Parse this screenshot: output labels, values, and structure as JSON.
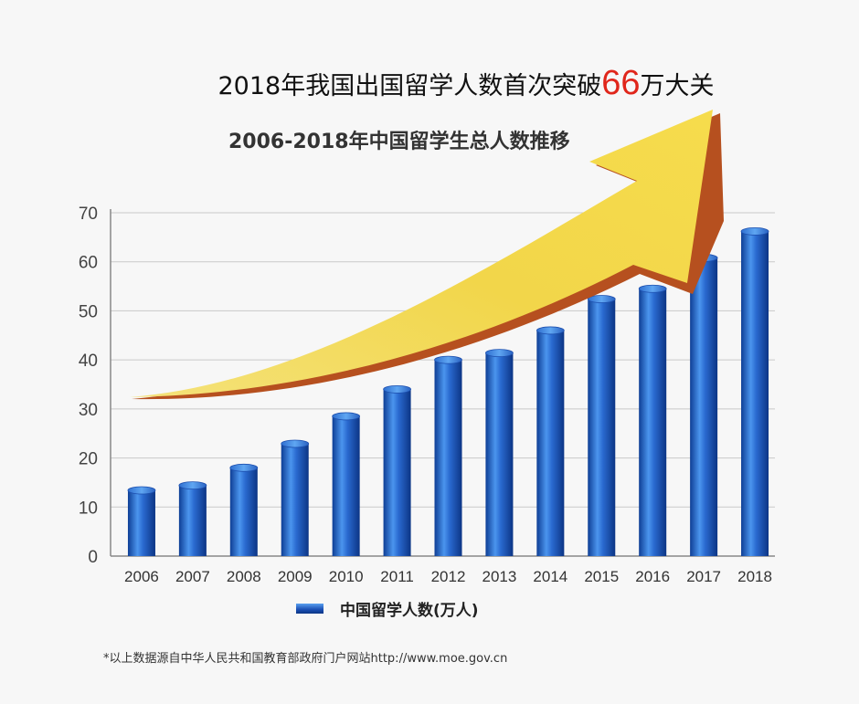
{
  "headline": {
    "prefix": "2018年我国出国留学人数首次突破",
    "number": "66",
    "suffix": "万大关"
  },
  "footnote": "*以上数据源自中华人民共和国教育部政府门户网站http://www.moe.gov.cn",
  "chart_data": {
    "type": "bar",
    "title": "2006-2018年中国留学生总人数推移",
    "categories": [
      "2006",
      "2007",
      "2008",
      "2009",
      "2010",
      "2011",
      "2012",
      "2013",
      "2014",
      "2015",
      "2016",
      "2017",
      "2018"
    ],
    "series": [
      {
        "name": "中国留学人数(万人)",
        "values": [
          13.4,
          14.4,
          18.0,
          22.9,
          28.5,
          34.0,
          40.0,
          41.4,
          46.0,
          52.4,
          54.5,
          60.8,
          66.2
        ]
      }
    ],
    "yticks": [
      "0",
      "10",
      "20",
      "30",
      "40",
      "50",
      "60",
      "70"
    ],
    "ylim": [
      0,
      70
    ],
    "grid": true,
    "legend": "bottom",
    "colors": {
      "bar": "#1f5bc0",
      "bar_light": "#5aa0f0",
      "arrow": "#f1d34a",
      "arrow_shadow": "#b6501f"
    }
  }
}
